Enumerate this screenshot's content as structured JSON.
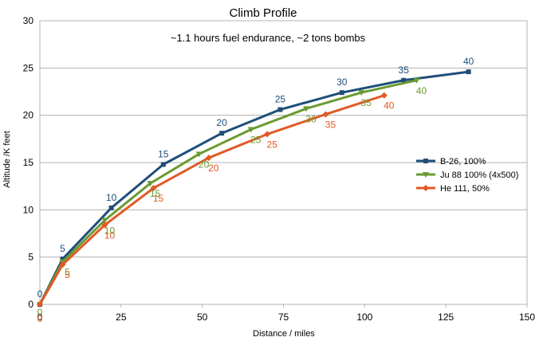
{
  "chart_data": {
    "type": "line",
    "title": "Climb Profile",
    "subtitle": "~1.1 hours fuel endurance, ~2 tons bombs",
    "xlabel": "Distance / miles",
    "ylabel": "Altitude /K feet",
    "xlim": [
      0,
      150
    ],
    "ylim": [
      0,
      30
    ],
    "xticks": [
      0,
      25,
      50,
      75,
      100,
      125,
      150
    ],
    "yticks": [
      0,
      5,
      10,
      15,
      20,
      25,
      30
    ],
    "grid": true,
    "legend_position": "right",
    "series": [
      {
        "name": "B-26, 100%",
        "color": "#1f4e79",
        "marker": "square",
        "points": [
          {
            "x": 0,
            "y": 0,
            "label": "0"
          },
          {
            "x": 7,
            "y": 4.8,
            "label": "5"
          },
          {
            "x": 22,
            "y": 10.2,
            "label": "10"
          },
          {
            "x": 38,
            "y": 14.8,
            "label": "15"
          },
          {
            "x": 56,
            "y": 18.1,
            "label": "20"
          },
          {
            "x": 74,
            "y": 20.6,
            "label": "25"
          },
          {
            "x": 93,
            "y": 22.4,
            "label": "30"
          },
          {
            "x": 112,
            "y": 23.7,
            "label": "35"
          },
          {
            "x": 132,
            "y": 24.6,
            "label": "40"
          }
        ]
      },
      {
        "name": "Ju 88 100% (4x500)",
        "color": "#6a9a30",
        "marker": "triangle-down",
        "points": [
          {
            "x": 0,
            "y": 0,
            "label": "0"
          },
          {
            "x": 7,
            "y": 4.5,
            "label": "5"
          },
          {
            "x": 20,
            "y": 8.9,
            "label": "10"
          },
          {
            "x": 34,
            "y": 12.8,
            "label": "15"
          },
          {
            "x": 49,
            "y": 15.9,
            "label": "20"
          },
          {
            "x": 65,
            "y": 18.5,
            "label": "25"
          },
          {
            "x": 82,
            "y": 20.7,
            "label": "30"
          },
          {
            "x": 99,
            "y": 22.4,
            "label": "35"
          },
          {
            "x": 116,
            "y": 23.7,
            "label": "40"
          }
        ]
      },
      {
        "name": "He 111, 50%",
        "color": "#e05a25",
        "marker": "diamond",
        "points": [
          {
            "x": 0,
            "y": 0,
            "label": "0"
          },
          {
            "x": 7,
            "y": 4.2,
            "label": "5"
          },
          {
            "x": 20,
            "y": 8.4,
            "label": "10"
          },
          {
            "x": 35,
            "y": 12.3,
            "label": "15"
          },
          {
            "x": 52,
            "y": 15.5,
            "label": "20"
          },
          {
            "x": 70,
            "y": 18.0,
            "label": "25"
          },
          {
            "x": 88,
            "y": 20.1,
            "label": "35"
          },
          {
            "x": 106,
            "y": 22.1,
            "label": "40"
          }
        ]
      }
    ]
  }
}
